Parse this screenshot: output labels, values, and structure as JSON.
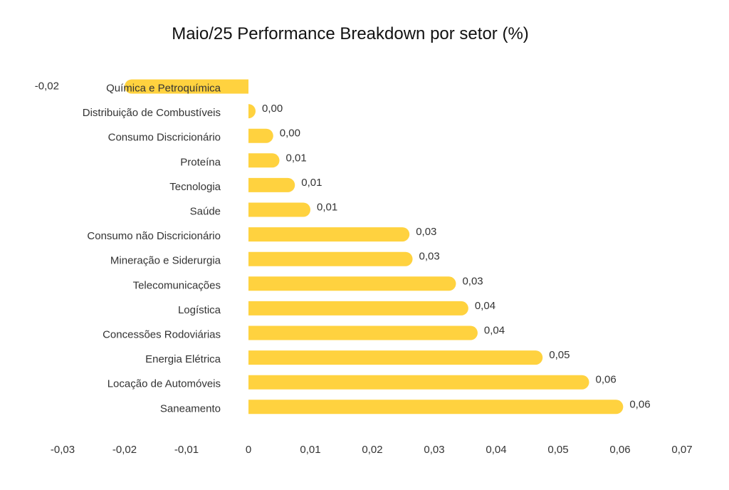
{
  "chart_data": {
    "type": "bar",
    "orientation": "horizontal",
    "title": "Maio/25 Performance Breakdown por setor (%)",
    "xlabel": "",
    "ylabel": "",
    "xlim": [
      -0.03,
      0.07
    ],
    "x_ticks": [
      "-0,03",
      "-0,02",
      "-0,01",
      "0",
      "0,01",
      "0,02",
      "0,03",
      "0,04",
      "0,05",
      "0,06",
      "0,07"
    ],
    "grid": false,
    "legend": "none",
    "bar_color": "#FFD23F",
    "categories": [
      "Química e Petroquímica",
      "Distribuição de Combustíveis",
      "Consumo Discricionário",
      "Proteína",
      "Tecnologia",
      "Saúde",
      "Consumo não Discricionário",
      "Mineração e Siderurgia",
      "Telecomunicações",
      "Logística",
      "Concessões Rodoviárias",
      "Energia Elétrica",
      "Locação de Automóveis",
      "Saneamento"
    ],
    "values": [
      -0.02,
      0.001,
      0.004,
      0.005,
      0.0075,
      0.01,
      0.026,
      0.0265,
      0.0335,
      0.0355,
      0.037,
      0.0475,
      0.055,
      0.0605
    ],
    "value_labels": [
      "-0,02",
      "0,00",
      "0,00",
      "0,01",
      "0,01",
      "0,01",
      "0,03",
      "0,03",
      "0,03",
      "0,04",
      "0,04",
      "0,05",
      "0,06",
      "0,06"
    ]
  }
}
